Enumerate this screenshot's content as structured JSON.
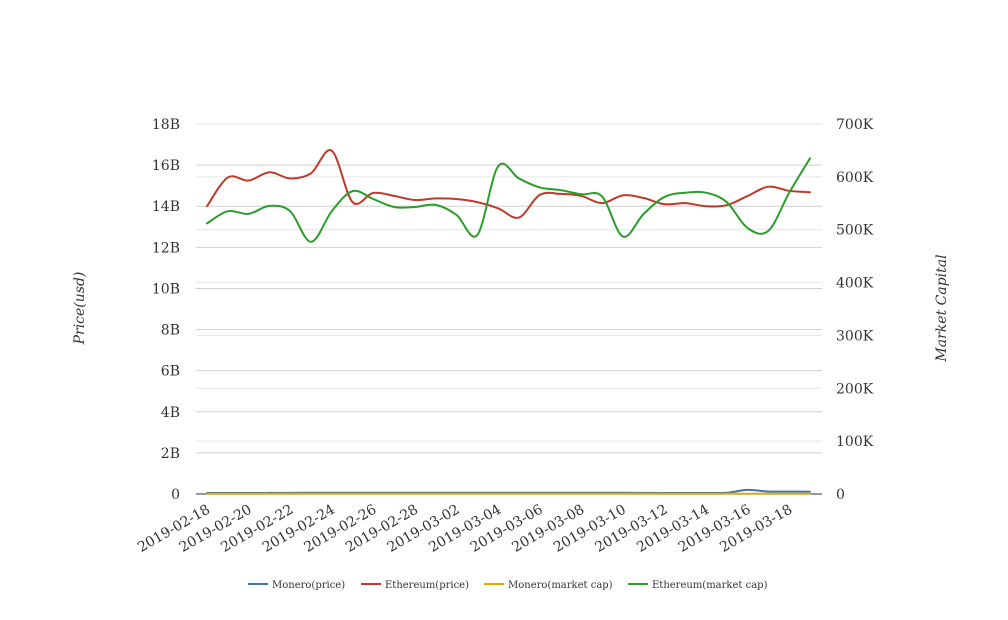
{
  "chart_data": {
    "type": "line",
    "title": "",
    "x": [
      "2019-02-18",
      "2019-02-19",
      "2019-02-20",
      "2019-02-21",
      "2019-02-22",
      "2019-02-23",
      "2019-02-24",
      "2019-02-25",
      "2019-02-26",
      "2019-02-27",
      "2019-02-28",
      "2019-03-01",
      "2019-03-02",
      "2019-03-03",
      "2019-03-04",
      "2019-03-05",
      "2019-03-06",
      "2019-03-07",
      "2019-03-08",
      "2019-03-09",
      "2019-03-10",
      "2019-03-11",
      "2019-03-12",
      "2019-03-13",
      "2019-03-14",
      "2019-03-15",
      "2019-03-16",
      "2019-03-17",
      "2019-03-18",
      "2019-03-19"
    ],
    "x_tick_labels": [
      "2019-02-18",
      "2019-02-20",
      "2019-02-22",
      "2019-02-24",
      "2019-02-26",
      "2019-02-28",
      "2019-03-02",
      "2019-03-04",
      "2019-03-06",
      "2019-03-08",
      "2019-03-10",
      "2019-03-12",
      "2019-03-14",
      "2019-03-16",
      "2019-03-18"
    ],
    "ylabel": "Price(usd)",
    "y2label": "Market Capital",
    "ylim": [
      0,
      18000000000
    ],
    "y2lim": [
      0,
      700000
    ],
    "y_tick_labels": [
      "0",
      "2B",
      "4B",
      "6B",
      "8B",
      "10B",
      "12B",
      "14B",
      "16B",
      "18B"
    ],
    "y2_tick_labels": [
      "0",
      "100K",
      "200K",
      "300K",
      "400K",
      "500K",
      "600K",
      "700K"
    ],
    "grid": true,
    "legend_position": "bottom",
    "series": [
      {
        "name": "Monero(price)",
        "axis": "left",
        "color": "#4572a7",
        "values": [
          50000000,
          50000000,
          50000000,
          52000000,
          55000000,
          60000000,
          58000000,
          58000000,
          60000000,
          60000000,
          58000000,
          58000000,
          58000000,
          58000000,
          60000000,
          60000000,
          62000000,
          62000000,
          60000000,
          58000000,
          58000000,
          55000000,
          50000000,
          50000000,
          50000000,
          60000000,
          200000000,
          120000000,
          115000000,
          110000000
        ]
      },
      {
        "name": "Ethereum(price)",
        "axis": "left",
        "color": "#c0392b",
        "values": [
          14000000000,
          15400000000,
          15250000000,
          15650000000,
          15350000000,
          15600000000,
          16700000000,
          14200000000,
          14650000000,
          14500000000,
          14300000000,
          14380000000,
          14350000000,
          14200000000,
          13900000000,
          13450000000,
          14550000000,
          14600000000,
          14500000000,
          14150000000,
          14530000000,
          14400000000,
          14100000000,
          14150000000,
          14000000000,
          14050000000,
          14500000000,
          14950000000,
          14750000000,
          14680000000
        ]
      },
      {
        "name": "Monero(market cap)",
        "axis": "right",
        "color": "#e0a800",
        "values": [
          500,
          500,
          500,
          500,
          500,
          500,
          500,
          500,
          500,
          500,
          500,
          500,
          500,
          500,
          500,
          500,
          500,
          500,
          500,
          500,
          500,
          500,
          500,
          500,
          500,
          500,
          500,
          500,
          500,
          500
        ]
      },
      {
        "name": "Ethereum(market cap)",
        "axis": "right",
        "color": "#2a9d2a",
        "values": [
          512000,
          535000,
          530000,
          545000,
          535000,
          477000,
          535000,
          573000,
          558000,
          543000,
          543000,
          547000,
          528000,
          490000,
          620000,
          597000,
          580000,
          575000,
          567000,
          563000,
          487000,
          530000,
          562000,
          570000,
          570000,
          552000,
          503000,
          498000,
          570000,
          635000
        ]
      }
    ]
  }
}
